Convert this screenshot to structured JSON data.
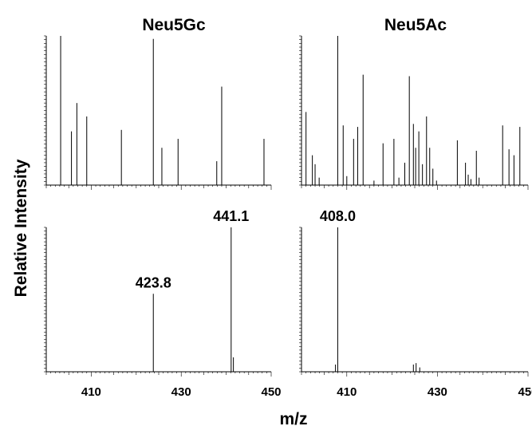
{
  "figure": {
    "ylabel": "Relative Intensity",
    "xlabel": "m/z",
    "columns": [
      "Neu5Gc",
      "Neu5Ac"
    ],
    "color": "#000000"
  },
  "chart_data": [
    {
      "type": "bar",
      "panel": "top-left",
      "title": "Neu5Gc",
      "xlim": [
        400,
        450
      ],
      "ylim": [
        0,
        100
      ],
      "ticks_x": [
        410,
        430,
        450
      ],
      "tick_labels_visible": false,
      "peaks": [
        {
          "x": 403.2,
          "y": 100
        },
        {
          "x": 405.6,
          "y": 36
        },
        {
          "x": 406.8,
          "y": 55
        },
        {
          "x": 409.0,
          "y": 46
        },
        {
          "x": 416.7,
          "y": 37
        },
        {
          "x": 423.8,
          "y": 98
        },
        {
          "x": 425.7,
          "y": 25
        },
        {
          "x": 429.3,
          "y": 31
        },
        {
          "x": 437.9,
          "y": 16
        },
        {
          "x": 439.0,
          "y": 66
        },
        {
          "x": 448.4,
          "y": 31
        }
      ]
    },
    {
      "type": "bar",
      "panel": "top-right",
      "title": "Neu5Ac",
      "xlim": [
        400,
        450
      ],
      "ylim": [
        0,
        100
      ],
      "ticks_x": [
        410,
        430,
        450
      ],
      "tick_labels_visible": false,
      "peaks": [
        {
          "x": 401.0,
          "y": 49
        },
        {
          "x": 402.4,
          "y": 20
        },
        {
          "x": 403.0,
          "y": 14
        },
        {
          "x": 403.9,
          "y": 5
        },
        {
          "x": 408.0,
          "y": 100
        },
        {
          "x": 409.2,
          "y": 40
        },
        {
          "x": 410.0,
          "y": 6
        },
        {
          "x": 411.5,
          "y": 31
        },
        {
          "x": 412.4,
          "y": 39
        },
        {
          "x": 413.6,
          "y": 74
        },
        {
          "x": 416.0,
          "y": 3
        },
        {
          "x": 418.0,
          "y": 28
        },
        {
          "x": 420.4,
          "y": 31
        },
        {
          "x": 421.5,
          "y": 5
        },
        {
          "x": 422.8,
          "y": 15
        },
        {
          "x": 423.8,
          "y": 73
        },
        {
          "x": 424.7,
          "y": 41
        },
        {
          "x": 425.2,
          "y": 25
        },
        {
          "x": 425.9,
          "y": 36
        },
        {
          "x": 426.7,
          "y": 14
        },
        {
          "x": 427.6,
          "y": 46
        },
        {
          "x": 428.3,
          "y": 25
        },
        {
          "x": 429.0,
          "y": 11
        },
        {
          "x": 429.8,
          "y": 3
        },
        {
          "x": 434.4,
          "y": 30
        },
        {
          "x": 436.2,
          "y": 15
        },
        {
          "x": 436.8,
          "y": 7
        },
        {
          "x": 437.4,
          "y": 4
        },
        {
          "x": 438.6,
          "y": 23
        },
        {
          "x": 439.2,
          "y": 5
        },
        {
          "x": 444.4,
          "y": 40
        },
        {
          "x": 445.8,
          "y": 24
        },
        {
          "x": 446.9,
          "y": 20
        },
        {
          "x": 448.2,
          "y": 39
        }
      ]
    },
    {
      "type": "bar",
      "panel": "bottom-left",
      "title": "",
      "xlim": [
        400,
        450
      ],
      "ylim": [
        0,
        100
      ],
      "ticks_x": [
        410,
        430,
        450
      ],
      "tick_labels_visible": true,
      "peaks": [
        {
          "x": 423.8,
          "y": 54
        },
        {
          "x": 441.1,
          "y": 100
        },
        {
          "x": 441.6,
          "y": 10
        }
      ],
      "annotations": [
        {
          "x": 423.8,
          "label": "423.8"
        },
        {
          "x": 441.1,
          "label": "441.1"
        }
      ]
    },
    {
      "type": "bar",
      "panel": "bottom-right",
      "title": "",
      "xlim": [
        400,
        450
      ],
      "ylim": [
        0,
        100
      ],
      "ticks_x": [
        410,
        430,
        450
      ],
      "tick_labels_visible": true,
      "peaks": [
        {
          "x": 407.5,
          "y": 5
        },
        {
          "x": 408.0,
          "y": 100
        },
        {
          "x": 424.7,
          "y": 5
        },
        {
          "x": 425.3,
          "y": 6
        },
        {
          "x": 426.1,
          "y": 3
        }
      ],
      "annotations": [
        {
          "x": 408.0,
          "label": "408.0"
        }
      ]
    }
  ]
}
